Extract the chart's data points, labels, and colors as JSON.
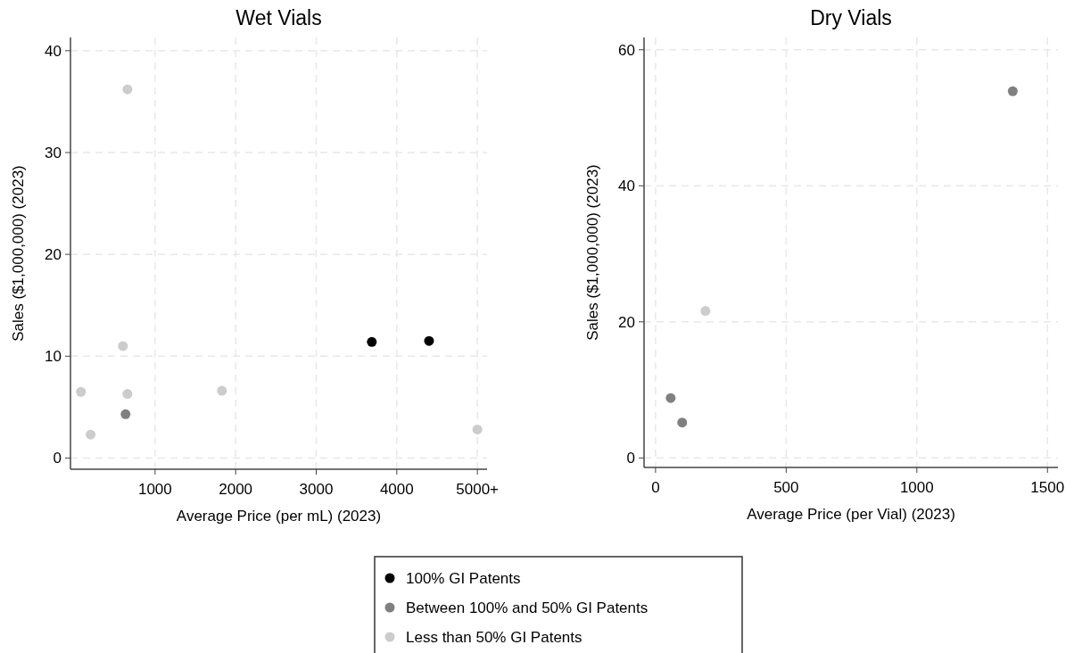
{
  "chart_data": [
    {
      "type": "scatter",
      "title": "Wet Vials",
      "xlabel": "Average Price (per mL) (2023)",
      "ylabel": "Sales ($1,000,000) (2023)",
      "xlim": [
        -50,
        5120
      ],
      "ylim": [
        -1.1,
        41.3
      ],
      "xticks": [
        1000,
        2000,
        3000,
        4000,
        {
          "value": 5000,
          "label": "5000+"
        }
      ],
      "yticks": [
        0,
        10,
        20,
        30,
        40
      ],
      "grid": true,
      "marker": "circle",
      "legend": "bottom",
      "series": [
        {
          "name": "100% GI Patents",
          "color": "#000000",
          "x": [
            3690,
            4400
          ],
          "values": [
            11.4,
            11.5
          ]
        },
        {
          "name": "Between 100% and 50% GI Patents",
          "color": "#808080",
          "x": [
            634
          ],
          "values": [
            4.3
          ]
        },
        {
          "name": "Less than 50% GI Patents",
          "color": "#cccccc",
          "x": [
            80,
            200,
            601,
            657,
            657,
            1830,
            5000
          ],
          "values": [
            6.5,
            2.3,
            11.0,
            36.2,
            6.3,
            6.6,
            2.8
          ]
        }
      ]
    },
    {
      "type": "scatter",
      "title": "Dry Vials",
      "xlabel": "Average Price (per Vial) (2023)",
      "ylabel": "Sales ($1,000,000) (2023)",
      "xlim": [
        -44,
        1540
      ],
      "ylim": [
        -1.4,
        61.8
      ],
      "xticks": [
        0,
        500,
        1000,
        1500
      ],
      "yticks": [
        0,
        20,
        40,
        60
      ],
      "grid": true,
      "marker": "circle",
      "series": [
        {
          "name": "Between 100% and 50% GI Patents",
          "color": "#808080",
          "x": [
            58,
            102,
            1367
          ],
          "values": [
            8.8,
            5.2,
            53.9
          ]
        },
        {
          "name": "Less than 50% GI Patents",
          "color": "#cccccc",
          "x": [
            191
          ],
          "values": [
            21.6
          ]
        }
      ]
    }
  ]
}
